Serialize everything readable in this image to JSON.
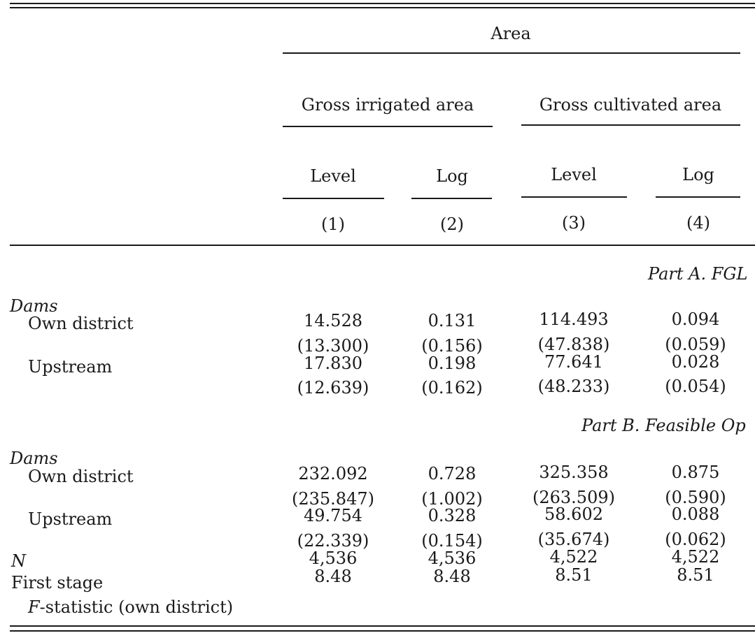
{
  "header": {
    "area": "Area",
    "group_irrigated": "Gross irrigated area",
    "group_cultivated": "Gross cultivated area",
    "columns": [
      {
        "sub": "Level",
        "num": "(1)"
      },
      {
        "sub": "Log",
        "num": "(2)"
      },
      {
        "sub": "Level",
        "num": "(3)"
      },
      {
        "sub": "Log",
        "num": "(4)"
      }
    ]
  },
  "partA": {
    "title": "Part A. FGL",
    "section": "Dams",
    "rows": [
      {
        "label": "Own district",
        "values": [
          "14.528",
          "0.131",
          "114.493",
          "0.094"
        ],
        "se": [
          "(13.300)",
          "(0.156)",
          "(47.838)",
          "(0.059)"
        ]
      },
      {
        "label": "Upstream",
        "values": [
          "17.830",
          "0.198",
          "77.641",
          "0.028"
        ],
        "se": [
          "(12.639)",
          "(0.162)",
          "(48.233)",
          "(0.054)"
        ]
      }
    ]
  },
  "partB": {
    "title": "Part B. Feasible Op",
    "section": "Dams",
    "rows": [
      {
        "label": "Own district",
        "values": [
          "232.092",
          "0.728",
          "325.358",
          "0.875"
        ],
        "se": [
          "(235.847)",
          "(1.002)",
          "(263.509)",
          "(0.590)"
        ]
      },
      {
        "label": "Upstream",
        "values": [
          "49.754",
          "0.328",
          "58.602",
          "0.088"
        ],
        "se": [
          "(22.339)",
          "(0.154)",
          "(35.674)",
          "(0.062)"
        ]
      }
    ],
    "n_label": "N",
    "n_values": [
      "4,536",
      "4,536",
      "4,522",
      "4,522"
    ],
    "first_stage_label": "First stage",
    "first_stage_values": [
      "8.48",
      "8.48",
      "8.51",
      "8.51"
    ],
    "fstat_label_italic": "F",
    "fstat_label_rest": "-statistic (own district)"
  }
}
